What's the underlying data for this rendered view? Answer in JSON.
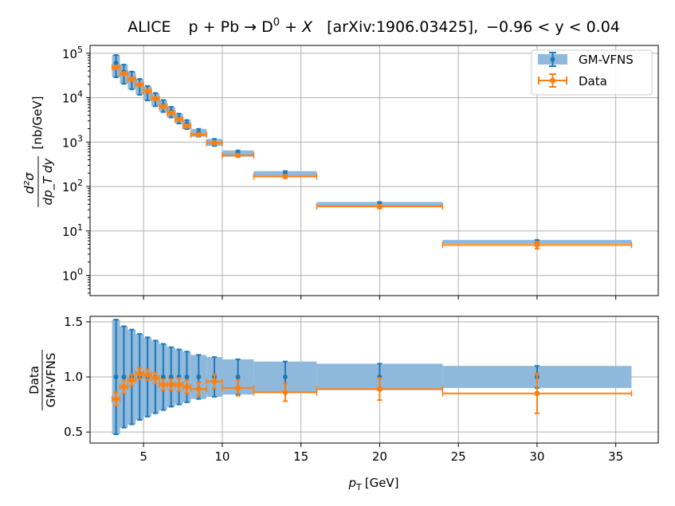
{
  "chart_data": {
    "type": "errorbar",
    "title": "ALICE    p + Pb → D⁰ + X   [arXiv:1906.03425],  −0.96 < y < 0.04",
    "title_parts": {
      "experiment": "ALICE",
      "reaction": "p + Pb → D",
      "reaction_sup": "0",
      "reaction_tail": " + X",
      "ref": "[arXiv:1906.03425],",
      "cut": "−0.96 < y < 0.04"
    },
    "xlabel": "p",
    "xlabel_sub": "T",
    "xlabel_unit": "[GeV]",
    "xlim": [
      1.6,
      37.7
    ],
    "xticks": [
      5,
      10,
      15,
      20,
      25,
      30,
      35
    ],
    "xtick_labels": [
      "5",
      "10",
      "15",
      "20",
      "25",
      "30",
      "35"
    ],
    "top": {
      "ylabel_num": "d²σ",
      "ylabel_den": "dp_T dy",
      "ylabel_unit": "[nb/GeV]",
      "yscale": "log",
      "ylim": [
        0.35,
        150000
      ],
      "yticks": [
        1,
        10,
        100,
        1000,
        10000,
        100000
      ],
      "ytick_labels": [
        "10^0",
        "10^1",
        "10^2",
        "10^3",
        "10^4",
        "10^5"
      ],
      "legend_position": "top-right",
      "legend": [
        "GM-VFNS",
        "Data"
      ]
    },
    "bottom": {
      "ylabel_num": "Data",
      "ylabel_den": "GM-VFNS",
      "ylim": [
        0.4,
        1.55
      ],
      "yticks": [
        0.5,
        1.0,
        1.5
      ],
      "ytick_labels": [
        "0.5",
        "1.0",
        "1.5"
      ]
    },
    "bins": [
      {
        "lo": 3.0,
        "hi": 3.5,
        "x": 3.25
      },
      {
        "lo": 3.5,
        "hi": 4.0,
        "x": 3.75
      },
      {
        "lo": 4.0,
        "hi": 4.5,
        "x": 4.25
      },
      {
        "lo": 4.5,
        "hi": 5.0,
        "x": 4.75
      },
      {
        "lo": 5.0,
        "hi": 5.5,
        "x": 5.25
      },
      {
        "lo": 5.5,
        "hi": 6.0,
        "x": 5.75
      },
      {
        "lo": 6.0,
        "hi": 6.5,
        "x": 6.25
      },
      {
        "lo": 6.5,
        "hi": 7.0,
        "x": 6.75
      },
      {
        "lo": 7.0,
        "hi": 7.5,
        "x": 7.25
      },
      {
        "lo": 7.5,
        "hi": 8.0,
        "x": 7.75
      },
      {
        "lo": 8.0,
        "hi": 9.0,
        "x": 8.5
      },
      {
        "lo": 9.0,
        "hi": 10.0,
        "x": 9.5
      },
      {
        "lo": 10.0,
        "hi": 12.0,
        "x": 11.0
      },
      {
        "lo": 12.0,
        "hi": 16.0,
        "x": 14.0
      },
      {
        "lo": 16.0,
        "hi": 24.0,
        "x": 20.0
      },
      {
        "lo": 24.0,
        "hi": 36.0,
        "x": 30.0
      }
    ],
    "series": [
      {
        "name": "GM-VFNS",
        "color": "#1f77b4",
        "band_color": "#8fb9dc",
        "values": [
          60000,
          38000,
          27000,
          19000,
          13500,
          9600,
          6800,
          4900,
          3500,
          2550,
          1650,
          1000,
          560,
          195,
          40,
          5.7
        ],
        "ratio": [
          1.0,
          1.0,
          1.0,
          1.0,
          1.0,
          1.0,
          1.0,
          1.0,
          1.0,
          1.0,
          1.0,
          1.0,
          1.0,
          1.0,
          1.0,
          1.0
        ],
        "ratio_err": [
          0.52,
          0.46,
          0.43,
          0.39,
          0.36,
          0.33,
          0.3,
          0.27,
          0.25,
          0.23,
          0.2,
          0.18,
          0.16,
          0.14,
          0.12,
          0.1
        ]
      },
      {
        "name": "Data",
        "color": "#ff7f0e",
        "values": [
          48000,
          34500,
          26000,
          19500,
          14000,
          9500,
          6300,
          4500,
          3250,
          2300,
          1470,
          960,
          500,
          168,
          35.5,
          4.85
        ],
        "ratio": [
          0.8,
          0.91,
          0.97,
          1.03,
          1.02,
          0.99,
          0.93,
          0.93,
          0.93,
          0.91,
          0.89,
          0.96,
          0.9,
          0.86,
          0.89,
          0.85
        ],
        "ratio_err": [
          0.06,
          0.06,
          0.05,
          0.05,
          0.05,
          0.05,
          0.05,
          0.05,
          0.06,
          0.06,
          0.06,
          0.06,
          0.07,
          0.08,
          0.1,
          0.18
        ]
      }
    ]
  }
}
